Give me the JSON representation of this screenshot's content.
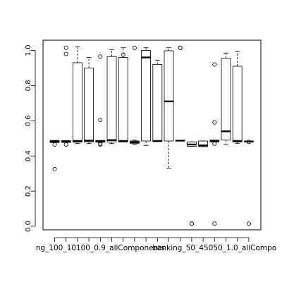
{
  "chart_data": {
    "type": "boxplot",
    "title": "",
    "xlabel": "",
    "ylabel": "",
    "ylim": [
      0.0,
      1.05
    ],
    "yticks": [
      "0.0",
      "0.2",
      "0.4",
      "0.6",
      "0.8",
      "1.0"
    ],
    "x_tick_labels": [
      {
        "text": "ng_100_10100_0.9_allComponents",
        "at": 5
      },
      {
        "text": "banking_50_45050_1.0_allCompo",
        "at": 15
      }
    ],
    "grid": false,
    "boxes": [
      {
        "q1": 0.476,
        "median": 0.482,
        "q3": 0.488,
        "wlo": 0.476,
        "whi": 0.488,
        "outliers": [
          0.465,
          0.325
        ]
      },
      {
        "q1": 0.477,
        "median": 0.482,
        "q3": 0.487,
        "wlo": 0.477,
        "whi": 0.487,
        "outliers": [
          0.465,
          1.015,
          0.98
        ]
      },
      {
        "q1": 0.478,
        "median": 0.485,
        "q3": 0.93,
        "wlo": 0.47,
        "whi": 1.02,
        "outliers": []
      },
      {
        "q1": 0.48,
        "median": 0.487,
        "q3": 0.9,
        "wlo": 0.47,
        "whi": 0.96,
        "outliers": []
      },
      {
        "q1": 0.478,
        "median": 0.483,
        "q3": 0.488,
        "wlo": 0.478,
        "whi": 0.488,
        "outliers": [
          0.605,
          0.965,
          0.47,
          0.465
        ]
      },
      {
        "q1": 0.48,
        "median": 0.49,
        "q3": 0.965,
        "wlo": 0.47,
        "whi": 1.005,
        "outliers": []
      },
      {
        "q1": 0.48,
        "median": 0.485,
        "q3": 0.96,
        "wlo": 0.48,
        "whi": 1.015,
        "outliers": [
          0.975
        ]
      },
      {
        "q1": 0.472,
        "median": 0.478,
        "q3": 0.485,
        "wlo": 0.466,
        "whi": 0.49,
        "outliers": [
          1.015
        ]
      },
      {
        "q1": 0.485,
        "median": 0.96,
        "q3": 1.0,
        "wlo": 0.46,
        "whi": 1.015,
        "outliers": []
      },
      {
        "q1": 0.482,
        "median": 0.485,
        "q3": 0.92,
        "wlo": 0.482,
        "whi": 0.945,
        "outliers": []
      },
      {
        "q1": 0.485,
        "median": 0.71,
        "q3": 0.998,
        "wlo": 0.33,
        "whi": 1.015,
        "outliers": []
      },
      {
        "q1": 0.485,
        "median": 0.487,
        "q3": 0.489,
        "wlo": 0.485,
        "whi": 0.489,
        "outliers": [
          1.015,
          1.015
        ]
      },
      {
        "q1": 0.455,
        "median": 0.465,
        "q3": 0.48,
        "wlo": 0.455,
        "whi": 0.48,
        "outliers": [
          0.015,
          0.015
        ]
      },
      {
        "q1": 0.453,
        "median": 0.46,
        "q3": 0.485,
        "wlo": 0.453,
        "whi": 0.485,
        "outliers": []
      },
      {
        "q1": 0.48,
        "median": 0.485,
        "q3": 0.49,
        "wlo": 0.48,
        "whi": 0.49,
        "outliers": [
          0.92,
          0.59,
          0.47,
          0.015
        ]
      },
      {
        "q1": 0.49,
        "median": 0.54,
        "q3": 0.955,
        "wlo": 0.465,
        "whi": 0.985,
        "outliers": []
      },
      {
        "q1": 0.48,
        "median": 0.485,
        "q3": 0.91,
        "wlo": 0.472,
        "whi": 0.995,
        "outliers": []
      },
      {
        "q1": 0.48,
        "median": 0.482,
        "q3": 0.485,
        "wlo": 0.48,
        "whi": 0.485,
        "outliers": [
          0.48,
          0.015
        ]
      }
    ]
  }
}
